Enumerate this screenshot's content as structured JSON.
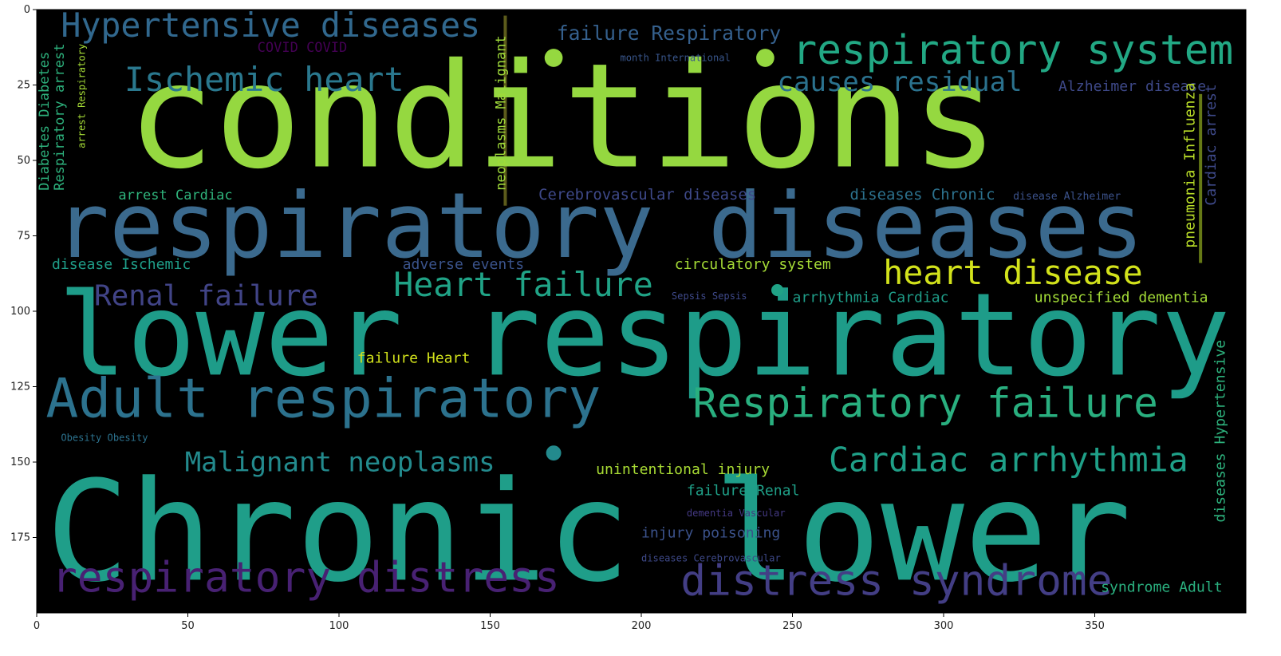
{
  "chart_data": {
    "type": "wordcloud",
    "title": "",
    "xlabel": "",
    "ylabel": "",
    "xlim": [
      0,
      400
    ],
    "ylim": [
      200,
      0
    ],
    "x_ticks": [
      0,
      50,
      100,
      150,
      200,
      250,
      300,
      350
    ],
    "y_ticks": [
      0,
      25,
      50,
      75,
      100,
      125,
      150,
      175
    ],
    "background": "#000000",
    "words": [
      {
        "text": "conditions",
        "x": 30,
        "y": 52,
        "size": 48,
        "color": "#95d840",
        "vertical": false
      },
      {
        "text": "respiratory diseases",
        "x": 6,
        "y": 82,
        "size": 30,
        "color": "#3b6a8e",
        "vertical": false
      },
      {
        "text": "lower respiratory",
        "x": 7,
        "y": 121,
        "size": 38,
        "color": "#1e9c89",
        "vertical": false
      },
      {
        "text": "Chronic lower",
        "x": 3,
        "y": 189,
        "size": 46,
        "color": "#1f9e89",
        "vertical": false
      },
      {
        "text": "respiratory system",
        "x": 250,
        "y": 18,
        "size": 13.5,
        "color": "#22a884",
        "vertical": false
      },
      {
        "text": "Hypertensive diseases",
        "x": 8,
        "y": 9,
        "size": 11,
        "color": "#31688e",
        "vertical": false
      },
      {
        "text": "Ischemic heart",
        "x": 29,
        "y": 27,
        "size": 11,
        "color": "#2a788e",
        "vertical": false
      },
      {
        "text": "causes residual",
        "x": 245,
        "y": 27,
        "size": 9,
        "color": "#2b728e",
        "vertical": false
      },
      {
        "text": "failure Respiratory",
        "x": 172,
        "y": 10,
        "size": 6.5,
        "color": "#35608d",
        "vertical": false
      },
      {
        "text": "COVID COVID",
        "x": 73,
        "y": 14,
        "size": 4.5,
        "color": "#440154",
        "vertical": false
      },
      {
        "text": "month International",
        "x": 193,
        "y": 17,
        "size": 3.2,
        "color": "#39568c",
        "vertical": false
      },
      {
        "text": "Alzheimer disease",
        "x": 338,
        "y": 27,
        "size": 4.8,
        "color": "#3e4989",
        "vertical": false
      },
      {
        "text": "Heart failure",
        "x": 118,
        "y": 95,
        "size": 11,
        "color": "#20a386",
        "vertical": false
      },
      {
        "text": "heart disease",
        "x": 280,
        "y": 91,
        "size": 11,
        "color": "#d2e21b",
        "vertical": false
      },
      {
        "text": "Renal failure",
        "x": 19,
        "y": 98,
        "size": 9.5,
        "color": "#414487",
        "vertical": false
      },
      {
        "text": "Adult respiratory",
        "x": 3,
        "y": 135,
        "size": 18,
        "color": "#2c728e",
        "vertical": false
      },
      {
        "text": "Respiratory failure",
        "x": 217,
        "y": 135,
        "size": 13.5,
        "color": "#29af7f",
        "vertical": false
      },
      {
        "text": "Malignant neoplasms",
        "x": 49,
        "y": 153,
        "size": 9,
        "color": "#238a8d",
        "vertical": false
      },
      {
        "text": "Cardiac arrhythmia",
        "x": 262,
        "y": 153,
        "size": 11,
        "color": "#1fa088",
        "vertical": false
      },
      {
        "text": "respiratory distress",
        "x": 5,
        "y": 193,
        "size": 14,
        "color": "#482173",
        "vertical": false
      },
      {
        "text": "distress syndrome",
        "x": 213,
        "y": 194,
        "size": 14,
        "color": "#433e85",
        "vertical": false
      },
      {
        "text": "arrest Cardiac",
        "x": 27,
        "y": 63,
        "size": 4.5,
        "color": "#2fb47c",
        "vertical": false
      },
      {
        "text": "Cerebrovascular diseases",
        "x": 166,
        "y": 63,
        "size": 5,
        "color": "#3e4989",
        "vertical": false
      },
      {
        "text": "diseases Chronic",
        "x": 269,
        "y": 63,
        "size": 5,
        "color": "#2c728e",
        "vertical": false
      },
      {
        "text": "disease Alzheimer",
        "x": 323,
        "y": 63,
        "size": 3.5,
        "color": "#3b528b",
        "vertical": false
      },
      {
        "text": "disease Ischemic",
        "x": 5,
        "y": 86,
        "size": 4.8,
        "color": "#1f9e89",
        "vertical": false
      },
      {
        "text": "adverse events",
        "x": 121,
        "y": 86,
        "size": 4.8,
        "color": "#3a538b",
        "vertical": false
      },
      {
        "text": "circulatory system",
        "x": 211,
        "y": 86,
        "size": 4.8,
        "color": "#a5db36",
        "vertical": false
      },
      {
        "text": "Sepsis Sepsis",
        "x": 210,
        "y": 96,
        "size": 3.2,
        "color": "#3e4989",
        "vertical": false
      },
      {
        "text": "arrhythmia Cardiac",
        "x": 250,
        "y": 97,
        "size": 4.8,
        "color": "#1f9e89",
        "vertical": false
      },
      {
        "text": "unspecified dementia",
        "x": 330,
        "y": 97,
        "size": 4.8,
        "color": "#a2da37",
        "vertical": false
      },
      {
        "text": "failure Heart",
        "x": 106,
        "y": 117,
        "size": 4.8,
        "color": "#d2e21b",
        "vertical": false
      },
      {
        "text": "Obesity Obesity",
        "x": 8,
        "y": 143,
        "size": 3.2,
        "color": "#2c728e",
        "vertical": false
      },
      {
        "text": "unintentional injury",
        "x": 185,
        "y": 154,
        "size": 4.8,
        "color": "#a8db34",
        "vertical": false
      },
      {
        "text": "failure Renal",
        "x": 215,
        "y": 161,
        "size": 4.8,
        "color": "#1fa088",
        "vertical": false
      },
      {
        "text": "dementia Vascular",
        "x": 215,
        "y": 168,
        "size": 3.2,
        "color": "#443983",
        "vertical": false
      },
      {
        "text": "injury poisoning",
        "x": 200,
        "y": 175,
        "size": 4.8,
        "color": "#3b528b",
        "vertical": false
      },
      {
        "text": "diseases Cerebrovascular",
        "x": 200,
        "y": 183,
        "size": 3.2,
        "color": "#3e4989",
        "vertical": false
      },
      {
        "text": "syndrome Adult",
        "x": 352,
        "y": 193,
        "size": 4.8,
        "color": "#2ab07f",
        "vertical": false
      },
      {
        "text": "Diabetes Diabetes",
        "x": 4,
        "y": 60,
        "size": 4.5,
        "color": "#2db27d",
        "vertical": true
      },
      {
        "text": "Respiratory arrest",
        "x": 9,
        "y": 60,
        "size": 4.5,
        "color": "#2db27d",
        "vertical": true
      },
      {
        "text": "arrest Respiratory",
        "x": 16,
        "y": 46,
        "size": 3.2,
        "color": "#a5db36",
        "vertical": true
      },
      {
        "text": "neoplasms Malignant",
        "x": 155,
        "y": 60,
        "size": 4.5,
        "color": "#9fda3a",
        "vertical": true
      },
      {
        "text": "pneumonia Influenza",
        "x": 383,
        "y": 79,
        "size": 4.8,
        "color": "#bade28",
        "vertical": true
      },
      {
        "text": "Cardiac arrest",
        "x": 390,
        "y": 65,
        "size": 4.8,
        "color": "#3e4989",
        "vertical": true
      },
      {
        "text": "diseases Hypertensive",
        "x": 393,
        "y": 170,
        "size": 4.8,
        "color": "#2db27d",
        "vertical": true
      }
    ],
    "dots": [
      {
        "x": 171,
        "y": 16,
        "r": 3,
        "color": "#95d840"
      },
      {
        "x": 241,
        "y": 16,
        "r": 3,
        "color": "#95d840"
      },
      {
        "x": 245,
        "y": 93,
        "r": 2,
        "color": "#20a386"
      },
      {
        "x": 171,
        "y": 147,
        "r": 2.5,
        "color": "#238a8d"
      }
    ],
    "vertical_bars": [
      {
        "x": 155,
        "y0": 2,
        "y1": 65,
        "color": "#a8a532"
      },
      {
        "x": 385,
        "y0": 28,
        "y1": 84,
        "color": "#bade28"
      }
    ]
  }
}
